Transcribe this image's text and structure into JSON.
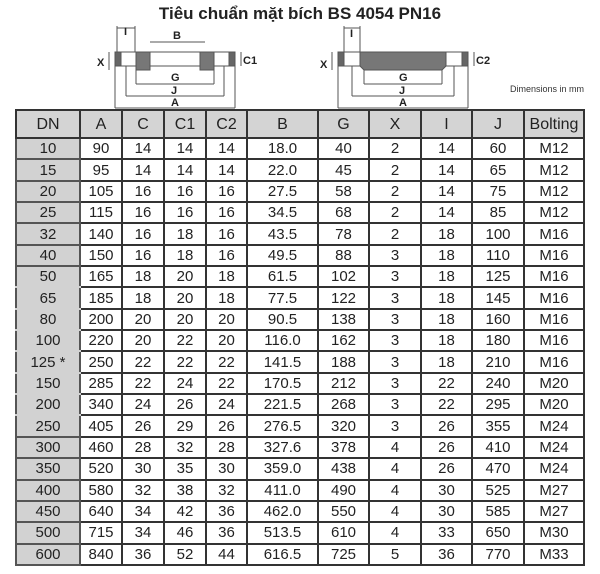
{
  "title": "Tiêu chuẩn mặt bích BS 4054 PN16",
  "units_note": "Dimensions in mm",
  "diagram_left": {
    "labels": [
      "I",
      "B",
      "X",
      "C1",
      "G",
      "J",
      "A"
    ]
  },
  "diagram_right": {
    "labels": [
      "I",
      "X",
      "C2",
      "G",
      "J",
      "A"
    ]
  },
  "table": {
    "headers": [
      "DN",
      "A",
      "C",
      "C1",
      "C2",
      "B",
      "G",
      "X",
      "I",
      "J",
      "Bolting"
    ],
    "rows": [
      [
        "10",
        "90",
        "14",
        "14",
        "14",
        "18.0",
        "40",
        "2",
        "14",
        "60",
        "M12"
      ],
      [
        "15",
        "95",
        "14",
        "14",
        "14",
        "22.0",
        "45",
        "2",
        "14",
        "65",
        "M12"
      ],
      [
        "20",
        "105",
        "16",
        "16",
        "16",
        "27.5",
        "58",
        "2",
        "14",
        "75",
        "M12"
      ],
      [
        "25",
        "115",
        "16",
        "16",
        "16",
        "34.5",
        "68",
        "2",
        "14",
        "85",
        "M12"
      ],
      [
        "32",
        "140",
        "16",
        "18",
        "16",
        "43.5",
        "78",
        "2",
        "18",
        "100",
        "M16"
      ],
      [
        "40",
        "150",
        "16",
        "18",
        "16",
        "49.5",
        "88",
        "3",
        "18",
        "110",
        "M16"
      ],
      [
        "50",
        "165",
        "18",
        "20",
        "18",
        "61.5",
        "102",
        "3",
        "18",
        "125",
        "M16"
      ],
      [
        "65",
        "185",
        "18",
        "20",
        "18",
        "77.5",
        "122",
        "3",
        "18",
        "145",
        "M16"
      ],
      [
        "80",
        "200",
        "20",
        "20",
        "20",
        "90.5",
        "138",
        "3",
        "18",
        "160",
        "M16"
      ],
      [
        "100",
        "220",
        "20",
        "22",
        "20",
        "116.0",
        "162",
        "3",
        "18",
        "180",
        "M16"
      ],
      [
        "125 *",
        "250",
        "22",
        "22",
        "22",
        "141.5",
        "188",
        "3",
        "18",
        "210",
        "M16"
      ],
      [
        "150",
        "285",
        "22",
        "24",
        "22",
        "170.5",
        "212",
        "3",
        "22",
        "240",
        "M20"
      ],
      [
        "200",
        "340",
        "24",
        "26",
        "24",
        "221.5",
        "268",
        "3",
        "22",
        "295",
        "M20"
      ],
      [
        "250",
        "405",
        "26",
        "29",
        "26",
        "276.5",
        "320",
        "3",
        "26",
        "355",
        "M24"
      ],
      [
        "300",
        "460",
        "28",
        "32",
        "28",
        "327.6",
        "378",
        "4",
        "26",
        "410",
        "M24"
      ],
      [
        "350",
        "520",
        "30",
        "35",
        "30",
        "359.0",
        "438",
        "4",
        "26",
        "470",
        "M24"
      ],
      [
        "400",
        "580",
        "32",
        "38",
        "32",
        "411.0",
        "490",
        "4",
        "30",
        "525",
        "M27"
      ],
      [
        "450",
        "640",
        "34",
        "42",
        "36",
        "462.0",
        "550",
        "4",
        "30",
        "585",
        "M27"
      ],
      [
        "500",
        "715",
        "34",
        "46",
        "36",
        "513.5",
        "610",
        "4",
        "33",
        "650",
        "M30"
      ],
      [
        "600",
        "840",
        "36",
        "52",
        "44",
        "616.5",
        "725",
        "5",
        "36",
        "770",
        "M33"
      ]
    ]
  }
}
